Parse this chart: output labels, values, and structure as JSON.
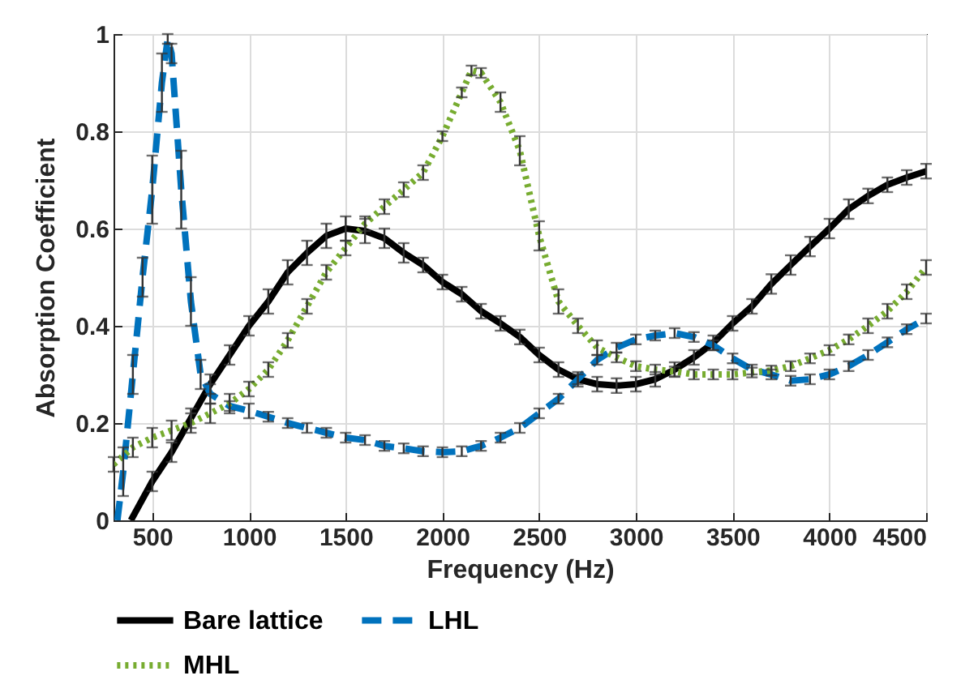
{
  "chart_data": {
    "type": "line",
    "xlabel": "Frequency (Hz)",
    "ylabel": "Absorption Coefficient",
    "xlim": [
      300,
      4500
    ],
    "ylim": [
      0,
      1
    ],
    "xticks": [
      500,
      1000,
      1500,
      2000,
      2500,
      3000,
      3500,
      4000,
      4500
    ],
    "yticks": [
      0,
      0.2,
      0.4,
      0.6,
      0.8,
      1
    ],
    "grid": true,
    "legend": "bottom",
    "marker": "none",
    "series": [
      {
        "name": "Bare lattice",
        "color": "#000000",
        "line_style": "solid",
        "x": [
          390,
          500,
          600,
          700,
          800,
          900,
          1000,
          1100,
          1200,
          1300,
          1400,
          1500,
          1600,
          1700,
          1800,
          1900,
          2000,
          2100,
          2200,
          2300,
          2400,
          2500,
          2600,
          2700,
          2800,
          2900,
          3000,
          3100,
          3200,
          3300,
          3400,
          3500,
          3600,
          3700,
          3800,
          3900,
          4000,
          4100,
          4200,
          4300,
          4400,
          4500
        ],
        "values": [
          0,
          0.08,
          0.14,
          0.21,
          0.28,
          0.34,
          0.4,
          0.45,
          0.51,
          0.55,
          0.585,
          0.6,
          0.595,
          0.58,
          0.55,
          0.525,
          0.49,
          0.465,
          0.43,
          0.405,
          0.377,
          0.34,
          0.31,
          0.29,
          0.28,
          0.277,
          0.28,
          0.29,
          0.31,
          0.335,
          0.365,
          0.405,
          0.44,
          0.486,
          0.525,
          0.563,
          0.6,
          0.64,
          0.667,
          0.69,
          0.705,
          0.718
        ],
        "errors": [
          null,
          0.02,
          0.02,
          0.02,
          0.02,
          0.02,
          0.02,
          0.025,
          0.025,
          0.025,
          0.025,
          0.025,
          0.025,
          0.02,
          0.02,
          0.015,
          0.015,
          0.015,
          0.015,
          0.015,
          0.015,
          0.015,
          0.015,
          0.015,
          0.015,
          0.015,
          0.015,
          0.015,
          0.015,
          0.015,
          0.015,
          0.015,
          0.015,
          0.02,
          0.02,
          0.02,
          0.02,
          0.02,
          0.015,
          0.015,
          0.015,
          0.015
        ]
      },
      {
        "name": "LHL",
        "color": "#0072bd",
        "line_style": "dashed",
        "x": [
          320,
          350,
          400,
          450,
          500,
          550,
          580,
          600,
          650,
          700,
          750,
          800,
          900,
          1000,
          1100,
          1200,
          1300,
          1400,
          1500,
          1600,
          1700,
          1800,
          1900,
          2000,
          2100,
          2200,
          2300,
          2400,
          2500,
          2600,
          2700,
          2800,
          2900,
          3000,
          3100,
          3200,
          3300,
          3400,
          3500,
          3600,
          3700,
          3800,
          3900,
          4000,
          4100,
          4200,
          4300,
          4400,
          4500
        ],
        "values": [
          0,
          0.1,
          0.3,
          0.5,
          0.68,
          0.9,
          0.99,
          0.96,
          0.68,
          0.45,
          0.3,
          0.26,
          0.235,
          0.225,
          0.213,
          0.2,
          0.19,
          0.18,
          0.17,
          0.165,
          0.153,
          0.148,
          0.142,
          0.14,
          0.142,
          0.153,
          0.17,
          0.19,
          0.22,
          0.25,
          0.29,
          0.33,
          0.355,
          0.372,
          0.38,
          0.385,
          0.377,
          0.36,
          0.333,
          0.31,
          0.3,
          0.287,
          0.29,
          0.3,
          0.317,
          0.34,
          0.366,
          0.393,
          0.415
        ],
        "errors": [
          null,
          0.05,
          0.04,
          0.04,
          0.07,
          0.06,
          0.01,
          0.02,
          0.08,
          0.05,
          0.03,
          0.02,
          0.01,
          0.015,
          0.01,
          0.01,
          0.01,
          0.01,
          0.01,
          0.01,
          0.01,
          0.01,
          0.01,
          0.01,
          0.01,
          0.01,
          0.01,
          0.01,
          0.01,
          0.01,
          0.01,
          0.01,
          0.01,
          0.01,
          0.01,
          0.01,
          0.01,
          0.01,
          0.01,
          0.01,
          0.01,
          0.01,
          0.01,
          0.01,
          0.01,
          0.01,
          0.01,
          0.01,
          0.01
        ]
      },
      {
        "name": "MHL",
        "color": "#77ac30",
        "line_style": "dotted",
        "x": [
          300,
          400,
          500,
          600,
          700,
          800,
          900,
          1000,
          1100,
          1200,
          1300,
          1400,
          1500,
          1600,
          1700,
          1800,
          1900,
          2000,
          2100,
          2150,
          2200,
          2300,
          2400,
          2500,
          2600,
          2700,
          2800,
          2900,
          3000,
          3100,
          3200,
          3300,
          3400,
          3500,
          3600,
          3700,
          3800,
          3900,
          4000,
          4100,
          4200,
          4300,
          4400,
          4500
        ],
        "values": [
          0.115,
          0.15,
          0.17,
          0.185,
          0.2,
          0.22,
          0.24,
          0.27,
          0.31,
          0.37,
          0.44,
          0.51,
          0.56,
          0.61,
          0.645,
          0.68,
          0.715,
          0.79,
          0.88,
          0.925,
          0.92,
          0.86,
          0.76,
          0.585,
          0.45,
          0.4,
          0.355,
          0.335,
          0.317,
          0.31,
          0.306,
          0.3,
          0.3,
          0.3,
          0.304,
          0.308,
          0.317,
          0.333,
          0.35,
          0.372,
          0.4,
          0.43,
          0.47,
          0.52
        ],
        "errors": [
          0.015,
          0.02,
          0.02,
          0.02,
          0.02,
          0.02,
          0.02,
          0.015,
          0.015,
          0.015,
          0.015,
          0.015,
          0.015,
          0.015,
          0.015,
          0.015,
          0.015,
          0.01,
          0.01,
          0.01,
          0.01,
          0.02,
          0.03,
          0.03,
          0.025,
          0.015,
          0.015,
          0.01,
          0.01,
          0.01,
          0.01,
          0.01,
          0.01,
          0.01,
          0.01,
          0.01,
          0.01,
          0.01,
          0.01,
          0.01,
          0.015,
          0.015,
          0.015,
          0.015
        ]
      }
    ]
  }
}
